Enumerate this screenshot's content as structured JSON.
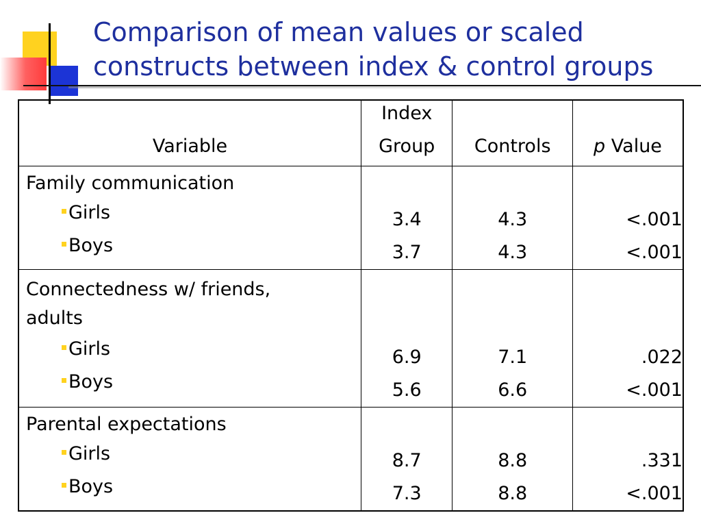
{
  "title": "Comparison of mean values or scaled constructs between index & control groups",
  "table": {
    "headers": {
      "variable": "Variable",
      "index_line1": "Index",
      "index_line2": "Group",
      "controls": "Controls",
      "p_italic": "p",
      "p_rest": " Value"
    },
    "groups": [
      {
        "label": "Family communication",
        "rows": [
          {
            "label": "Girls",
            "index": "3.4",
            "controls": "4.3",
            "p": "<.001"
          },
          {
            "label": "Boys",
            "index": "3.7",
            "controls": "4.3",
            "p": "<.001"
          }
        ]
      },
      {
        "label": "Connectedness w/ friends, adults",
        "rows": [
          {
            "label": "Girls",
            "index": "6.9",
            "controls": "7.1",
            "p": ".022"
          },
          {
            "label": "Boys",
            "index": "5.6",
            "controls": "6.6",
            "p": "<.001"
          }
        ]
      },
      {
        "label": "Parental expectations",
        "rows": [
          {
            "label": "Girls",
            "index": "8.7",
            "controls": "8.8",
            "p": ".331"
          },
          {
            "label": "Boys",
            "index": "7.3",
            "controls": "8.8",
            "p": "<.001"
          }
        ]
      }
    ]
  },
  "colors": {
    "title": "#1e2f9e",
    "bullet": "#ffd21f",
    "logo_yellow": "#ffd21f",
    "logo_red": "#ff3b3b",
    "logo_blue": "#1c34d6"
  }
}
